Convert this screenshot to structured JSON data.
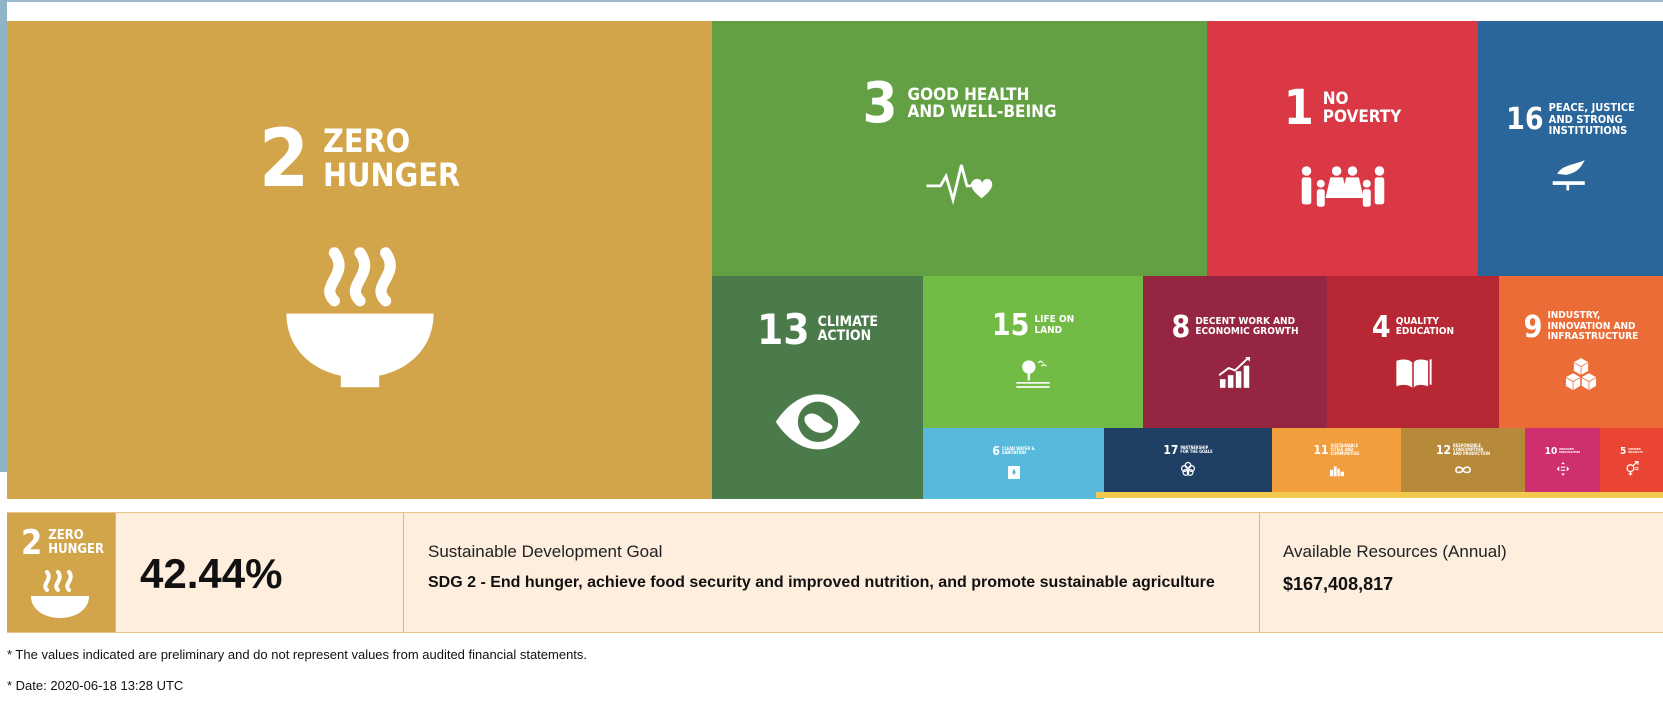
{
  "chart_data": {
    "type": "treemap",
    "items": [
      {
        "goal": "2",
        "title": "ZERO\nHUNGER",
        "color": "#D3A54A",
        "icon": "bowl-icon"
      },
      {
        "goal": "3",
        "title": "GOOD HEALTH\nAND WELL-BEING",
        "color": "#62A043",
        "icon": "heartbeat-icon"
      },
      {
        "goal": "1",
        "title": "NO\nPOVERTY",
        "color": "#D93844",
        "icon": "family-icon"
      },
      {
        "goal": "16",
        "title": "PEACE, JUSTICE\nAND STRONG\nINSTITUTIONS",
        "color": "#2A6699",
        "icon": "dove-icon"
      },
      {
        "goal": "13",
        "title": "CLIMATE\nACTION",
        "color": "#4B7B4A",
        "icon": "eye-globe-icon"
      },
      {
        "goal": "15",
        "title": "LIFE ON\nLAND",
        "color": "#72BC45",
        "icon": "tree-icon"
      },
      {
        "goal": "8",
        "title": "DECENT WORK AND\nECONOMIC GROWTH",
        "color": "#952540",
        "icon": "growth-chart-icon"
      },
      {
        "goal": "4",
        "title": "QUALITY\nEDUCATION",
        "color": "#B72834",
        "icon": "book-icon"
      },
      {
        "goal": "9",
        "title": "INDUSTRY,\nINNOVATION AND\nINFRASTRUCTURE",
        "color": "#EC6C37",
        "icon": "cubes-icon"
      },
      {
        "goal": "6",
        "title": "CLEAN WATER &\nSANITATION",
        "color": "#58B9DD",
        "icon": "water-icon"
      },
      {
        "goal": "17",
        "title": "PARTNERSHIP\nFOR THE GOALS",
        "color": "#1F4064",
        "icon": "rings-icon"
      },
      {
        "goal": "11",
        "title": "SUSTAINABLE\nCITIES AND\nCOMMUNITIES",
        "color": "#F09E3E",
        "icon": "city-icon"
      },
      {
        "goal": "12",
        "title": "RESPONSIBLE\nCONSUMPTION\nAND PRODUCTION",
        "color": "#B68A3A",
        "icon": "infinity-icon"
      },
      {
        "goal": "10",
        "title": "REDUCED\nINEQUALITIES",
        "color": "#D02F6F",
        "icon": "equal-icon"
      },
      {
        "goal": "5",
        "title": "GENDER\nEQUALITY",
        "color": "#EA4432",
        "icon": "gender-icon"
      }
    ]
  },
  "summary": {
    "logo_num": "2",
    "logo_title": "ZERO\nHUNGER",
    "percent": "42.44%",
    "goal_label": "Sustainable Development Goal",
    "goal_value": "SDG 2 - End hunger, achieve food security and improved nutrition, and promote sustainable agriculture",
    "resources_label": "Available Resources (Annual)",
    "resources_value": "$167,408,817"
  },
  "footnotes": {
    "note1": "* The values indicated are preliminary and do not represent values from audited financial statements.",
    "note2": "* Date: 2020-06-18 13:28 UTC"
  }
}
